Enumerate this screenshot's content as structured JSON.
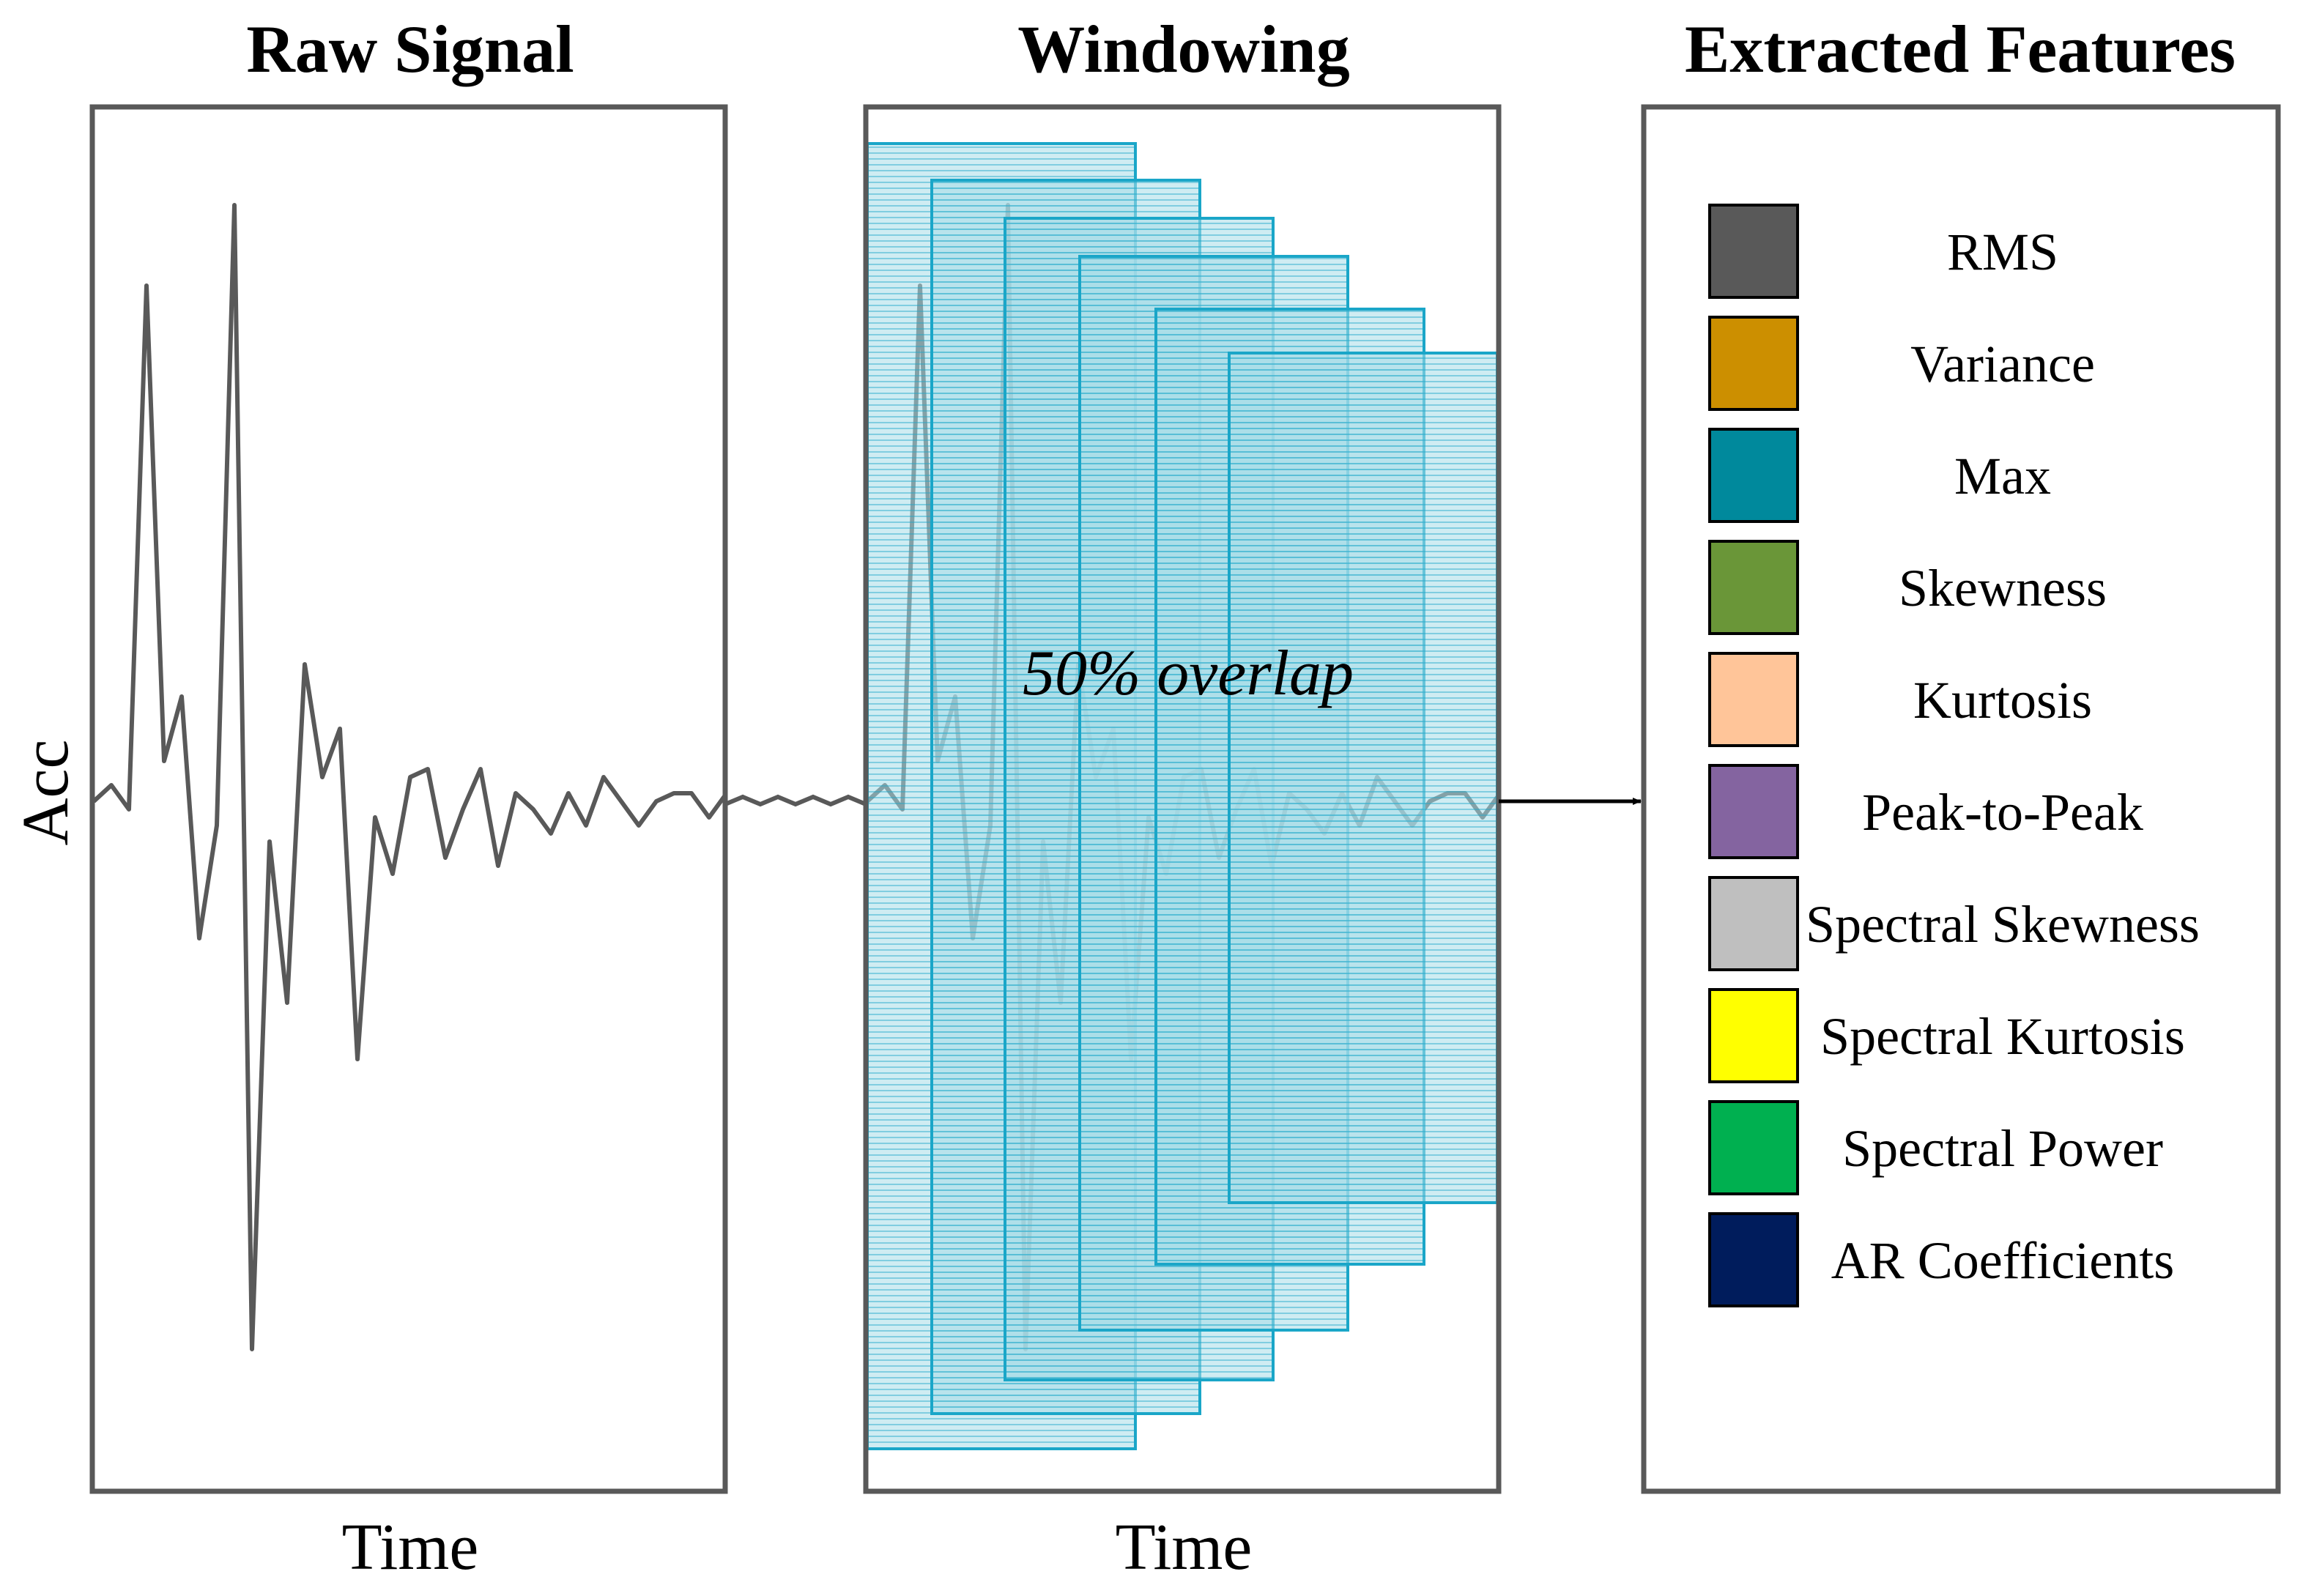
{
  "panels": {
    "raw": {
      "title": "Raw Signal",
      "xlabel": "Time",
      "ylabel": "Acc"
    },
    "windowing": {
      "title": "Windowing",
      "xlabel": "Time",
      "overlap_label": "50% overlap"
    },
    "features": {
      "title": "Extracted Features"
    }
  },
  "signal": {
    "color": "#595959",
    "values": [
      0,
      0.02,
      -0.01,
      0.64,
      0.05,
      0.13,
      -0.17,
      -0.03,
      0.74,
      -0.68,
      -0.05,
      -0.25,
      0.17,
      0.03,
      0.09,
      -0.32,
      -0.02,
      -0.09,
      0.03,
      0.04,
      -0.07,
      -0.01,
      0.04,
      -0.08,
      0.01,
      -0.01,
      -0.04,
      0.01,
      -0.03,
      0.03,
      0.0,
      -0.03,
      0.0,
      0.01,
      0.01,
      -0.02,
      0.01,
      0.0,
      -0.01,
      0.02
    ]
  },
  "windows": {
    "count": 6,
    "overlap_percent": 50,
    "stroke_color": "#1aa6c8",
    "fill_color": "#a8dde8"
  },
  "features": [
    {
      "label": "RMS",
      "color": "#595959"
    },
    {
      "label": "Variance",
      "color": "#cc8f00"
    },
    {
      "label": "Max",
      "color": "#00899c"
    },
    {
      "label": "Skewness",
      "color": "#6a9638"
    },
    {
      "label": "Kurtosis",
      "color": "#ffc599"
    },
    {
      "label": "Peak-to-Peak",
      "color": "#8464a0"
    },
    {
      "label": "Spectral Skewness",
      "color": "#bfbfbf"
    },
    {
      "label": "Spectral Kurtosis",
      "color": "#ffff00"
    },
    {
      "label": "Spectral Power",
      "color": "#00b050"
    },
    {
      "label": "AR Coefficients",
      "color": "#001c5c"
    }
  ]
}
